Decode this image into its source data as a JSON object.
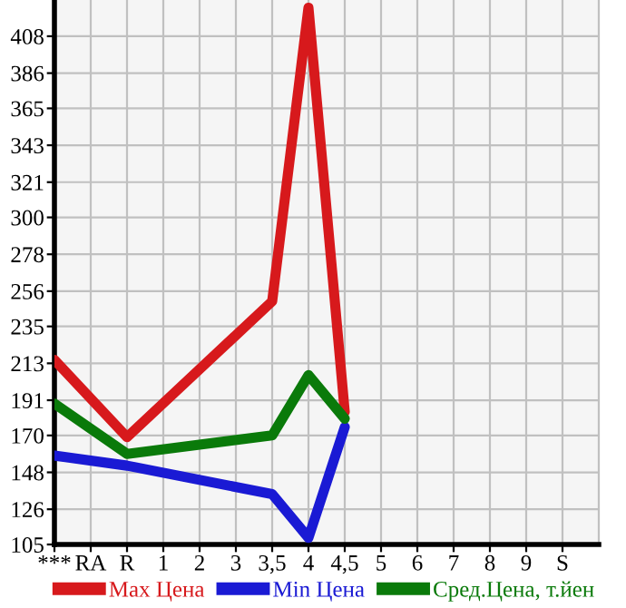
{
  "chart_data": {
    "type": "line",
    "categories": [
      "***",
      "RA",
      "R",
      "1",
      "2",
      "3",
      "3,5",
      "4",
      "4,5",
      "5",
      "6",
      "7",
      "8",
      "9",
      "S"
    ],
    "series": [
      {
        "name": "Max Цена",
        "color": "#d7191c",
        "values": [
          215,
          null,
          169,
          null,
          null,
          null,
          250,
          425,
          184,
          null,
          null,
          null,
          null,
          null,
          null
        ]
      },
      {
        "name": "Min Цена",
        "color": "#1a1ad4",
        "values": [
          158,
          null,
          152,
          null,
          null,
          null,
          135,
          109,
          175,
          null,
          null,
          null,
          null,
          null,
          null
        ]
      },
      {
        "name": "Сред.Цена, т.йен",
        "color": "#0a7a0a",
        "values": [
          189,
          null,
          159,
          null,
          null,
          null,
          170,
          206,
          180,
          null,
          null,
          null,
          null,
          null,
          null
        ]
      }
    ],
    "ylim": [
      105,
      429.6
    ],
    "yticks": [
      105,
      126,
      148,
      170,
      191,
      213,
      235,
      256,
      278,
      300,
      321,
      343,
      365,
      386,
      408
    ],
    "grid": true,
    "legend": "bottom",
    "marker": "none",
    "line_style": "solid"
  }
}
